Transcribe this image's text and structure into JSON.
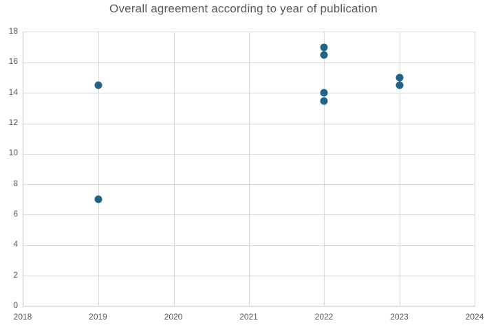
{
  "chart_data": {
    "type": "scatter",
    "title": "Overall agreement according to year of publication",
    "xlabel": "",
    "ylabel": "",
    "xlim": [
      2018,
      2024
    ],
    "ylim": [
      0,
      18
    ],
    "x_ticks": [
      2018,
      2019,
      2020,
      2021,
      2022,
      2023,
      2024
    ],
    "y_ticks": [
      0,
      2,
      4,
      6,
      8,
      10,
      12,
      14,
      16,
      18
    ],
    "grid": true,
    "legend": false,
    "point_color": "#1f6386",
    "points": [
      {
        "x": 2019,
        "y": 14.5
      },
      {
        "x": 2019,
        "y": 7
      },
      {
        "x": 2022,
        "y": 17
      },
      {
        "x": 2022,
        "y": 16.5
      },
      {
        "x": 2022,
        "y": 14
      },
      {
        "x": 2022,
        "y": 13.5
      },
      {
        "x": 2023,
        "y": 15
      },
      {
        "x": 2023,
        "y": 14.5
      }
    ]
  },
  "colors": {
    "background": "#ffffff",
    "gridline": "#d9d9d9",
    "axis_line": "#bfbfbf",
    "title_text": "#595959",
    "tick_text": "#595959"
  }
}
